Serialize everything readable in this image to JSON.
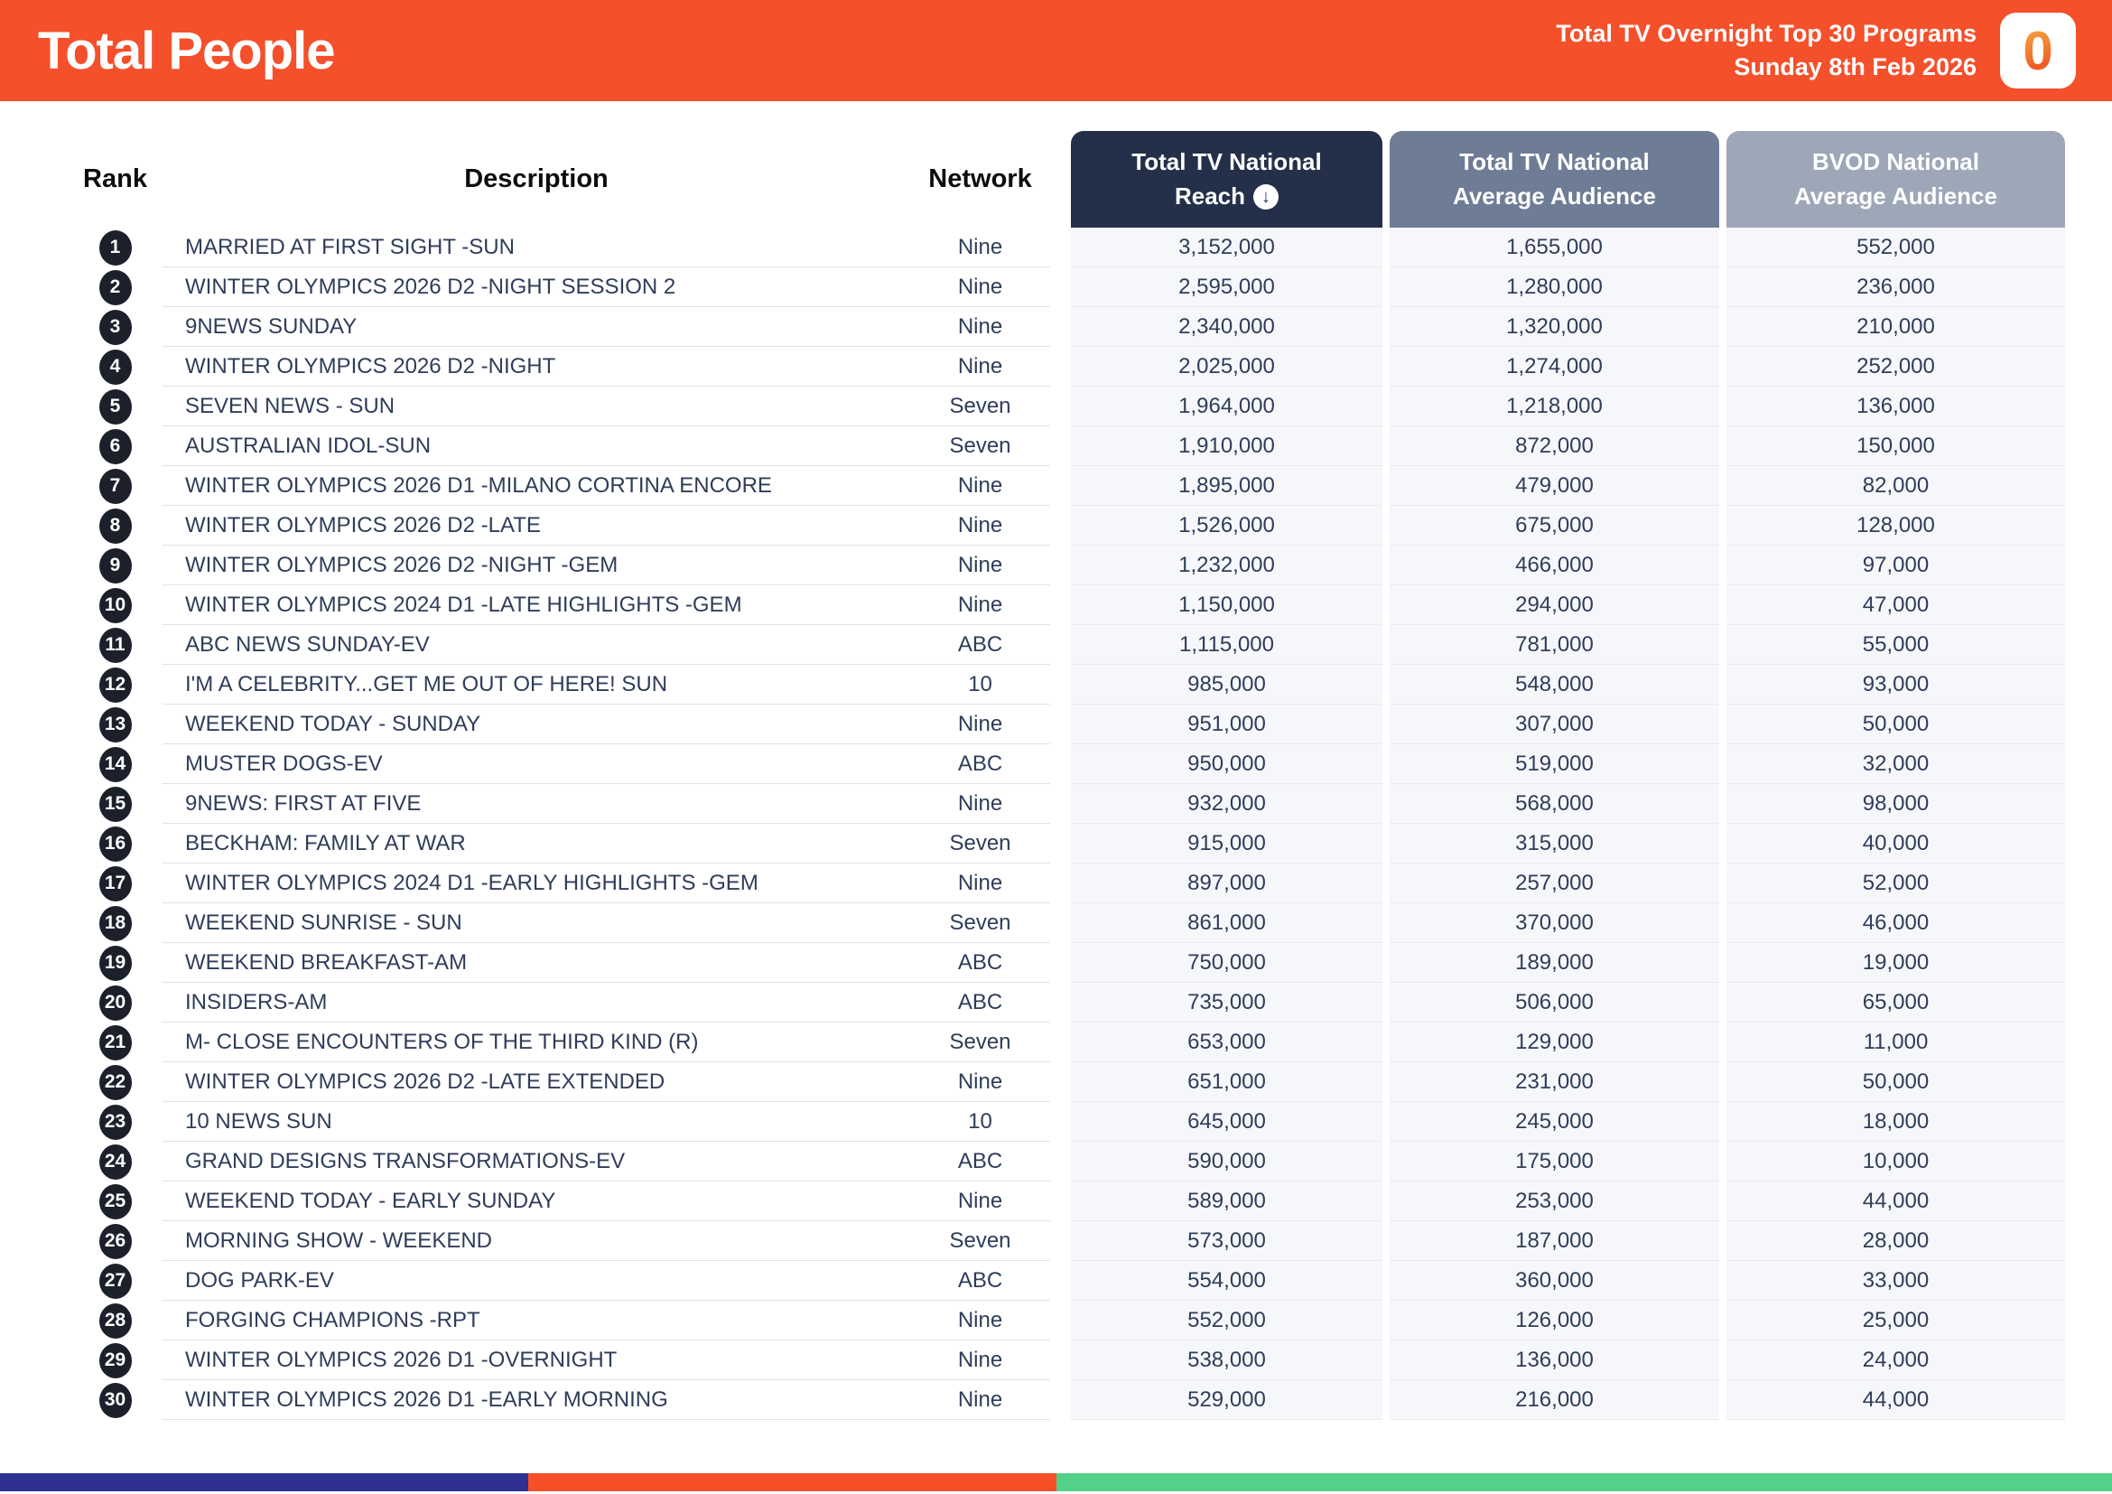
{
  "header": {
    "title": "Total People",
    "subtitle_line1": "Total TV Overnight Top 30 Programs",
    "subtitle_line2": "Sunday 8th Feb 2026",
    "logo_text": "0",
    "accent_color": "#F4502B"
  },
  "table": {
    "columns": {
      "rank": "Rank",
      "description": "Description",
      "network": "Network",
      "reach_line1": "Total TV National",
      "reach_line2": "Reach",
      "reach_sort_icon": "↓",
      "avg_line1": "Total TV National",
      "avg_line2": "Average Audience",
      "bvod_line1": "BVOD National",
      "bvod_line2": "Average Audience"
    },
    "header_colors": {
      "reach": "#243049",
      "avg_audience": "#6E7C95",
      "bvod_audience": "#9DA7B7"
    },
    "rows": [
      {
        "rank": "1",
        "description": "MARRIED AT FIRST SIGHT -SUN",
        "network": "Nine",
        "reach": "3,152,000",
        "avg_audience": "1,655,000",
        "bvod_audience": "552,000"
      },
      {
        "rank": "2",
        "description": "WINTER OLYMPICS 2026 D2 -NIGHT SESSION 2",
        "network": "Nine",
        "reach": "2,595,000",
        "avg_audience": "1,280,000",
        "bvod_audience": "236,000"
      },
      {
        "rank": "3",
        "description": "9NEWS SUNDAY",
        "network": "Nine",
        "reach": "2,340,000",
        "avg_audience": "1,320,000",
        "bvod_audience": "210,000"
      },
      {
        "rank": "4",
        "description": "WINTER OLYMPICS 2026 D2 -NIGHT",
        "network": "Nine",
        "reach": "2,025,000",
        "avg_audience": "1,274,000",
        "bvod_audience": "252,000"
      },
      {
        "rank": "5",
        "description": "SEVEN NEWS - SUN",
        "network": "Seven",
        "reach": "1,964,000",
        "avg_audience": "1,218,000",
        "bvod_audience": "136,000"
      },
      {
        "rank": "6",
        "description": "AUSTRALIAN IDOL-SUN",
        "network": "Seven",
        "reach": "1,910,000",
        "avg_audience": "872,000",
        "bvod_audience": "150,000"
      },
      {
        "rank": "7",
        "description": "WINTER OLYMPICS 2026 D1 -MILANO CORTINA ENCORE",
        "network": "Nine",
        "reach": "1,895,000",
        "avg_audience": "479,000",
        "bvod_audience": "82,000"
      },
      {
        "rank": "8",
        "description": "WINTER OLYMPICS 2026 D2 -LATE",
        "network": "Nine",
        "reach": "1,526,000",
        "avg_audience": "675,000",
        "bvod_audience": "128,000"
      },
      {
        "rank": "9",
        "description": "WINTER OLYMPICS 2026 D2 -NIGHT -GEM",
        "network": "Nine",
        "reach": "1,232,000",
        "avg_audience": "466,000",
        "bvod_audience": "97,000"
      },
      {
        "rank": "10",
        "description": "WINTER OLYMPICS 2024 D1 -LATE HIGHLIGHTS -GEM",
        "network": "Nine",
        "reach": "1,150,000",
        "avg_audience": "294,000",
        "bvod_audience": "47,000"
      },
      {
        "rank": "11",
        "description": "ABC NEWS SUNDAY-EV",
        "network": "ABC",
        "reach": "1,115,000",
        "avg_audience": "781,000",
        "bvod_audience": "55,000"
      },
      {
        "rank": "12",
        "description": "I'M A CELEBRITY...GET ME OUT OF HERE! SUN",
        "network": "10",
        "reach": "985,000",
        "avg_audience": "548,000",
        "bvod_audience": "93,000"
      },
      {
        "rank": "13",
        "description": "WEEKEND TODAY - SUNDAY",
        "network": "Nine",
        "reach": "951,000",
        "avg_audience": "307,000",
        "bvod_audience": "50,000"
      },
      {
        "rank": "14",
        "description": "MUSTER DOGS-EV",
        "network": "ABC",
        "reach": "950,000",
        "avg_audience": "519,000",
        "bvod_audience": "32,000"
      },
      {
        "rank": "15",
        "description": "9NEWS: FIRST AT FIVE",
        "network": "Nine",
        "reach": "932,000",
        "avg_audience": "568,000",
        "bvod_audience": "98,000"
      },
      {
        "rank": "16",
        "description": "BECKHAM: FAMILY AT WAR",
        "network": "Seven",
        "reach": "915,000",
        "avg_audience": "315,000",
        "bvod_audience": "40,000"
      },
      {
        "rank": "17",
        "description": "WINTER OLYMPICS 2024 D1 -EARLY HIGHLIGHTS -GEM",
        "network": "Nine",
        "reach": "897,000",
        "avg_audience": "257,000",
        "bvod_audience": "52,000"
      },
      {
        "rank": "18",
        "description": "WEEKEND SUNRISE - SUN",
        "network": "Seven",
        "reach": "861,000",
        "avg_audience": "370,000",
        "bvod_audience": "46,000"
      },
      {
        "rank": "19",
        "description": "WEEKEND BREAKFAST-AM",
        "network": "ABC",
        "reach": "750,000",
        "avg_audience": "189,000",
        "bvod_audience": "19,000"
      },
      {
        "rank": "20",
        "description": "INSIDERS-AM",
        "network": "ABC",
        "reach": "735,000",
        "avg_audience": "506,000",
        "bvod_audience": "65,000"
      },
      {
        "rank": "21",
        "description": "M- CLOSE ENCOUNTERS OF THE THIRD KIND (R)",
        "network": "Seven",
        "reach": "653,000",
        "avg_audience": "129,000",
        "bvod_audience": "11,000"
      },
      {
        "rank": "22",
        "description": "WINTER OLYMPICS 2026 D2 -LATE EXTENDED",
        "network": "Nine",
        "reach": "651,000",
        "avg_audience": "231,000",
        "bvod_audience": "50,000"
      },
      {
        "rank": "23",
        "description": "10 NEWS SUN",
        "network": "10",
        "reach": "645,000",
        "avg_audience": "245,000",
        "bvod_audience": "18,000"
      },
      {
        "rank": "24",
        "description": "GRAND DESIGNS TRANSFORMATIONS-EV",
        "network": "ABC",
        "reach": "590,000",
        "avg_audience": "175,000",
        "bvod_audience": "10,000"
      },
      {
        "rank": "25",
        "description": "WEEKEND TODAY - EARLY SUNDAY",
        "network": "Nine",
        "reach": "589,000",
        "avg_audience": "253,000",
        "bvod_audience": "44,000"
      },
      {
        "rank": "26",
        "description": "MORNING SHOW - WEEKEND",
        "network": "Seven",
        "reach": "573,000",
        "avg_audience": "187,000",
        "bvod_audience": "28,000"
      },
      {
        "rank": "27",
        "description": "DOG PARK-EV",
        "network": "ABC",
        "reach": "554,000",
        "avg_audience": "360,000",
        "bvod_audience": "33,000"
      },
      {
        "rank": "28",
        "description": "FORGING CHAMPIONS -RPT",
        "network": "Nine",
        "reach": "552,000",
        "avg_audience": "126,000",
        "bvod_audience": "25,000"
      },
      {
        "rank": "29",
        "description": "WINTER OLYMPICS 2026 D1 -OVERNIGHT",
        "network": "Nine",
        "reach": "538,000",
        "avg_audience": "136,000",
        "bvod_audience": "24,000"
      },
      {
        "rank": "30",
        "description": "WINTER OLYMPICS 2026 D1 -EARLY MORNING",
        "network": "Nine",
        "reach": "529,000",
        "avg_audience": "216,000",
        "bvod_audience": "44,000"
      }
    ]
  },
  "footer": {
    "segments": [
      {
        "color": "#2E3192",
        "width_pct": 25
      },
      {
        "color": "#F94F28",
        "width_pct": 25
      },
      {
        "color": "#52D189",
        "width_pct": 50
      }
    ]
  }
}
